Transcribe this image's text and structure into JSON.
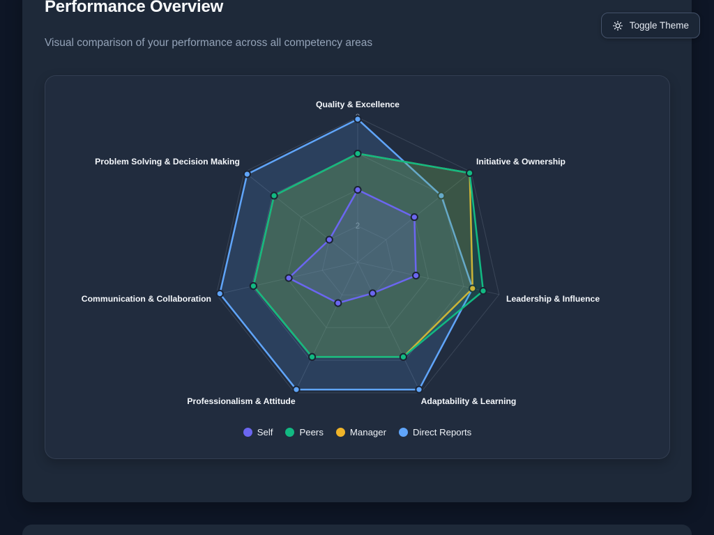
{
  "page": {
    "title": "Performance Overview",
    "subtitle": "Visual comparison of your performance across all competency areas"
  },
  "theme_toggle": {
    "label": "Toggle Theme",
    "icon": "sun-icon"
  },
  "colors": {
    "page_background": "#0e1626",
    "card_background": "#1e2939",
    "panel_background": "#212c3e",
    "grid_line": "rgba(148,163,184,0.22)",
    "point_border": "#1b2433",
    "self": "#6b66f0",
    "peers": "#12b982",
    "manager": "#f0b429",
    "direct_reports": "#60a5fa"
  },
  "chart_data": {
    "type": "radar",
    "categories": [
      "Quality & Excellence",
      "Initiative & Ownership",
      "Leadership & Influence",
      "Adaptability & Learning",
      "Professionalism & Attitude",
      "Communication & Collaboration",
      "Problem Solving & Decision Making"
    ],
    "series": [
      {
        "name": "Self",
        "color": "#6b66f0",
        "values": [
          4.0,
          4.0,
          3.3,
          1.9,
          2.5,
          3.9,
          2.0
        ]
      },
      {
        "name": "Peers",
        "color": "#12b982",
        "values": [
          6.0,
          7.9,
          7.1,
          5.8,
          5.8,
          5.9,
          5.9
        ]
      },
      {
        "name": "Manager",
        "color": "#f0b429",
        "values": [
          6.0,
          7.9,
          6.5,
          5.8,
          5.8,
          5.9,
          5.9
        ]
      },
      {
        "name": "Direct Reports",
        "color": "#60a5fa",
        "values": [
          7.9,
          5.9,
          6.5,
          7.8,
          7.8,
          7.8,
          7.8
        ]
      }
    ],
    "scale": {
      "min": 0,
      "max": 8,
      "tick_step": 2,
      "ticks": [
        2,
        4,
        6,
        8
      ],
      "visible_tick_label": "2"
    },
    "legend_position": "bottom",
    "grid": true,
    "fill_opacity": 0.17
  }
}
